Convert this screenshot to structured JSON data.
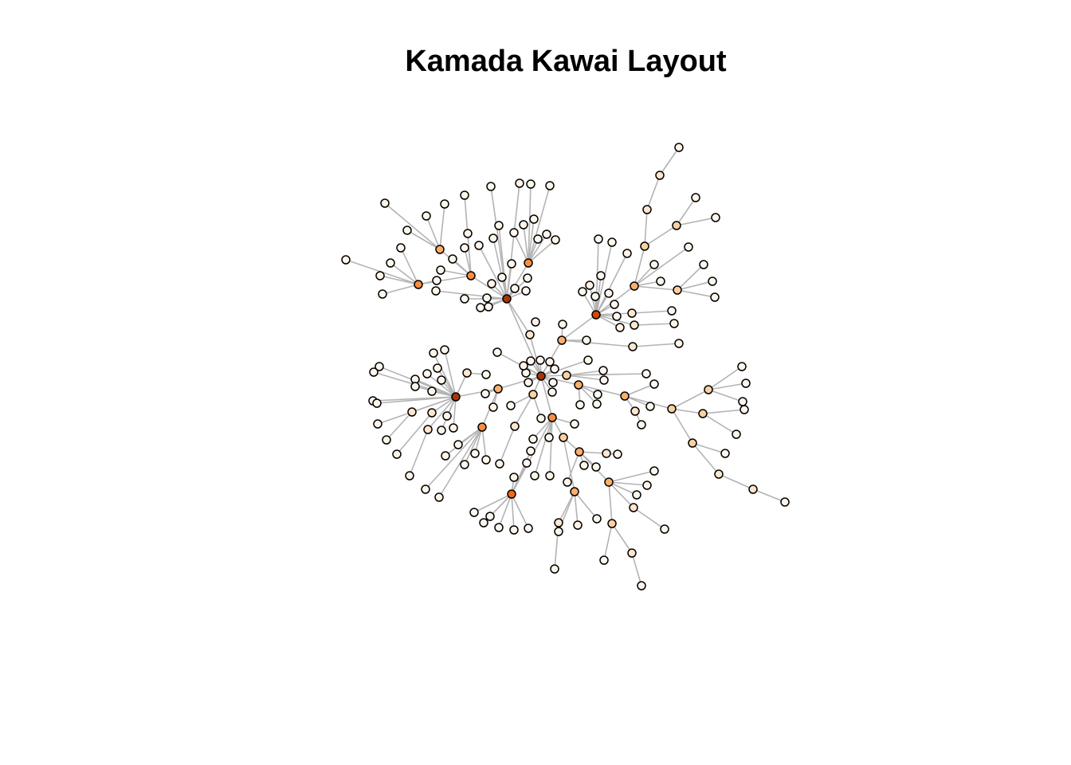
{
  "title": "Kamada Kawai Layout",
  "colors": {
    "background": "#ffffff",
    "edge": "#b3b3b3",
    "node_stroke": "#000000",
    "degree_scale": [
      "#fff5eb",
      "#fee6ce",
      "#fdd0a2",
      "#fdae6b",
      "#fd8d3c",
      "#f16913",
      "#d94801",
      "#a63603",
      "#7f2704"
    ]
  },
  "graph": {
    "layout": "kamada-kawai",
    "node_fill": "by degree",
    "directed": false
  }
}
